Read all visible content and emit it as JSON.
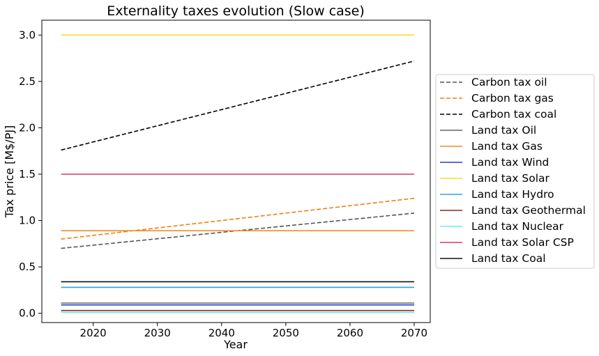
{
  "chart_data": {
    "type": "line",
    "title": "Externality taxes evolution (Slow case)",
    "xlabel": "Year",
    "ylabel": "Tax price [M$/PJ]",
    "xlim": [
      2012,
      2072.5
    ],
    "ylim": [
      -0.1,
      3.16
    ],
    "xticks": [
      2020,
      2030,
      2040,
      2050,
      2060,
      2070
    ],
    "yticks": [
      0.0,
      0.5,
      1.0,
      1.5,
      2.0,
      2.5,
      3.0
    ],
    "x": [
      2015,
      2070
    ],
    "grid": false,
    "legend_position": "right",
    "series": [
      {
        "name": "Carbon tax oil",
        "values": [
          0.7,
          1.08
        ],
        "color": "#555555",
        "style": "dashed"
      },
      {
        "name": "Carbon tax gas",
        "values": [
          0.8,
          1.24
        ],
        "color": "#f07f10",
        "style": "dashed"
      },
      {
        "name": "Carbon tax coal",
        "values": [
          1.76,
          2.72
        ],
        "color": "#000000",
        "style": "dashed"
      },
      {
        "name": "Land tax Oil",
        "values": [
          0.11,
          0.11
        ],
        "color": "#666666",
        "style": "solid"
      },
      {
        "name": "Land tax Gas",
        "values": [
          0.89,
          0.89
        ],
        "color": "#f08c28",
        "style": "solid"
      },
      {
        "name": "Land tax Wind",
        "values": [
          0.09,
          0.09
        ],
        "color": "#1f3fd8",
        "style": "solid"
      },
      {
        "name": "Land tax Solar",
        "values": [
          3.0,
          3.0
        ],
        "color": "#ffd92a",
        "style": "solid"
      },
      {
        "name": "Land tax Hydro",
        "values": [
          0.28,
          0.28
        ],
        "color": "#2aa0f0",
        "style": "solid"
      },
      {
        "name": "Land tax Geothermal",
        "values": [
          0.03,
          0.03
        ],
        "color": "#8b2a1e",
        "style": "solid"
      },
      {
        "name": "Land tax Nuclear",
        "values": [
          0.01,
          0.01
        ],
        "color": "#66ecf5",
        "style": "solid"
      },
      {
        "name": "Land tax Solar CSP",
        "values": [
          1.5,
          1.5
        ],
        "color": "#d43c64",
        "style": "solid"
      },
      {
        "name": "Land tax Coal",
        "values": [
          0.34,
          0.34
        ],
        "color": "#111111",
        "style": "solid"
      }
    ]
  }
}
